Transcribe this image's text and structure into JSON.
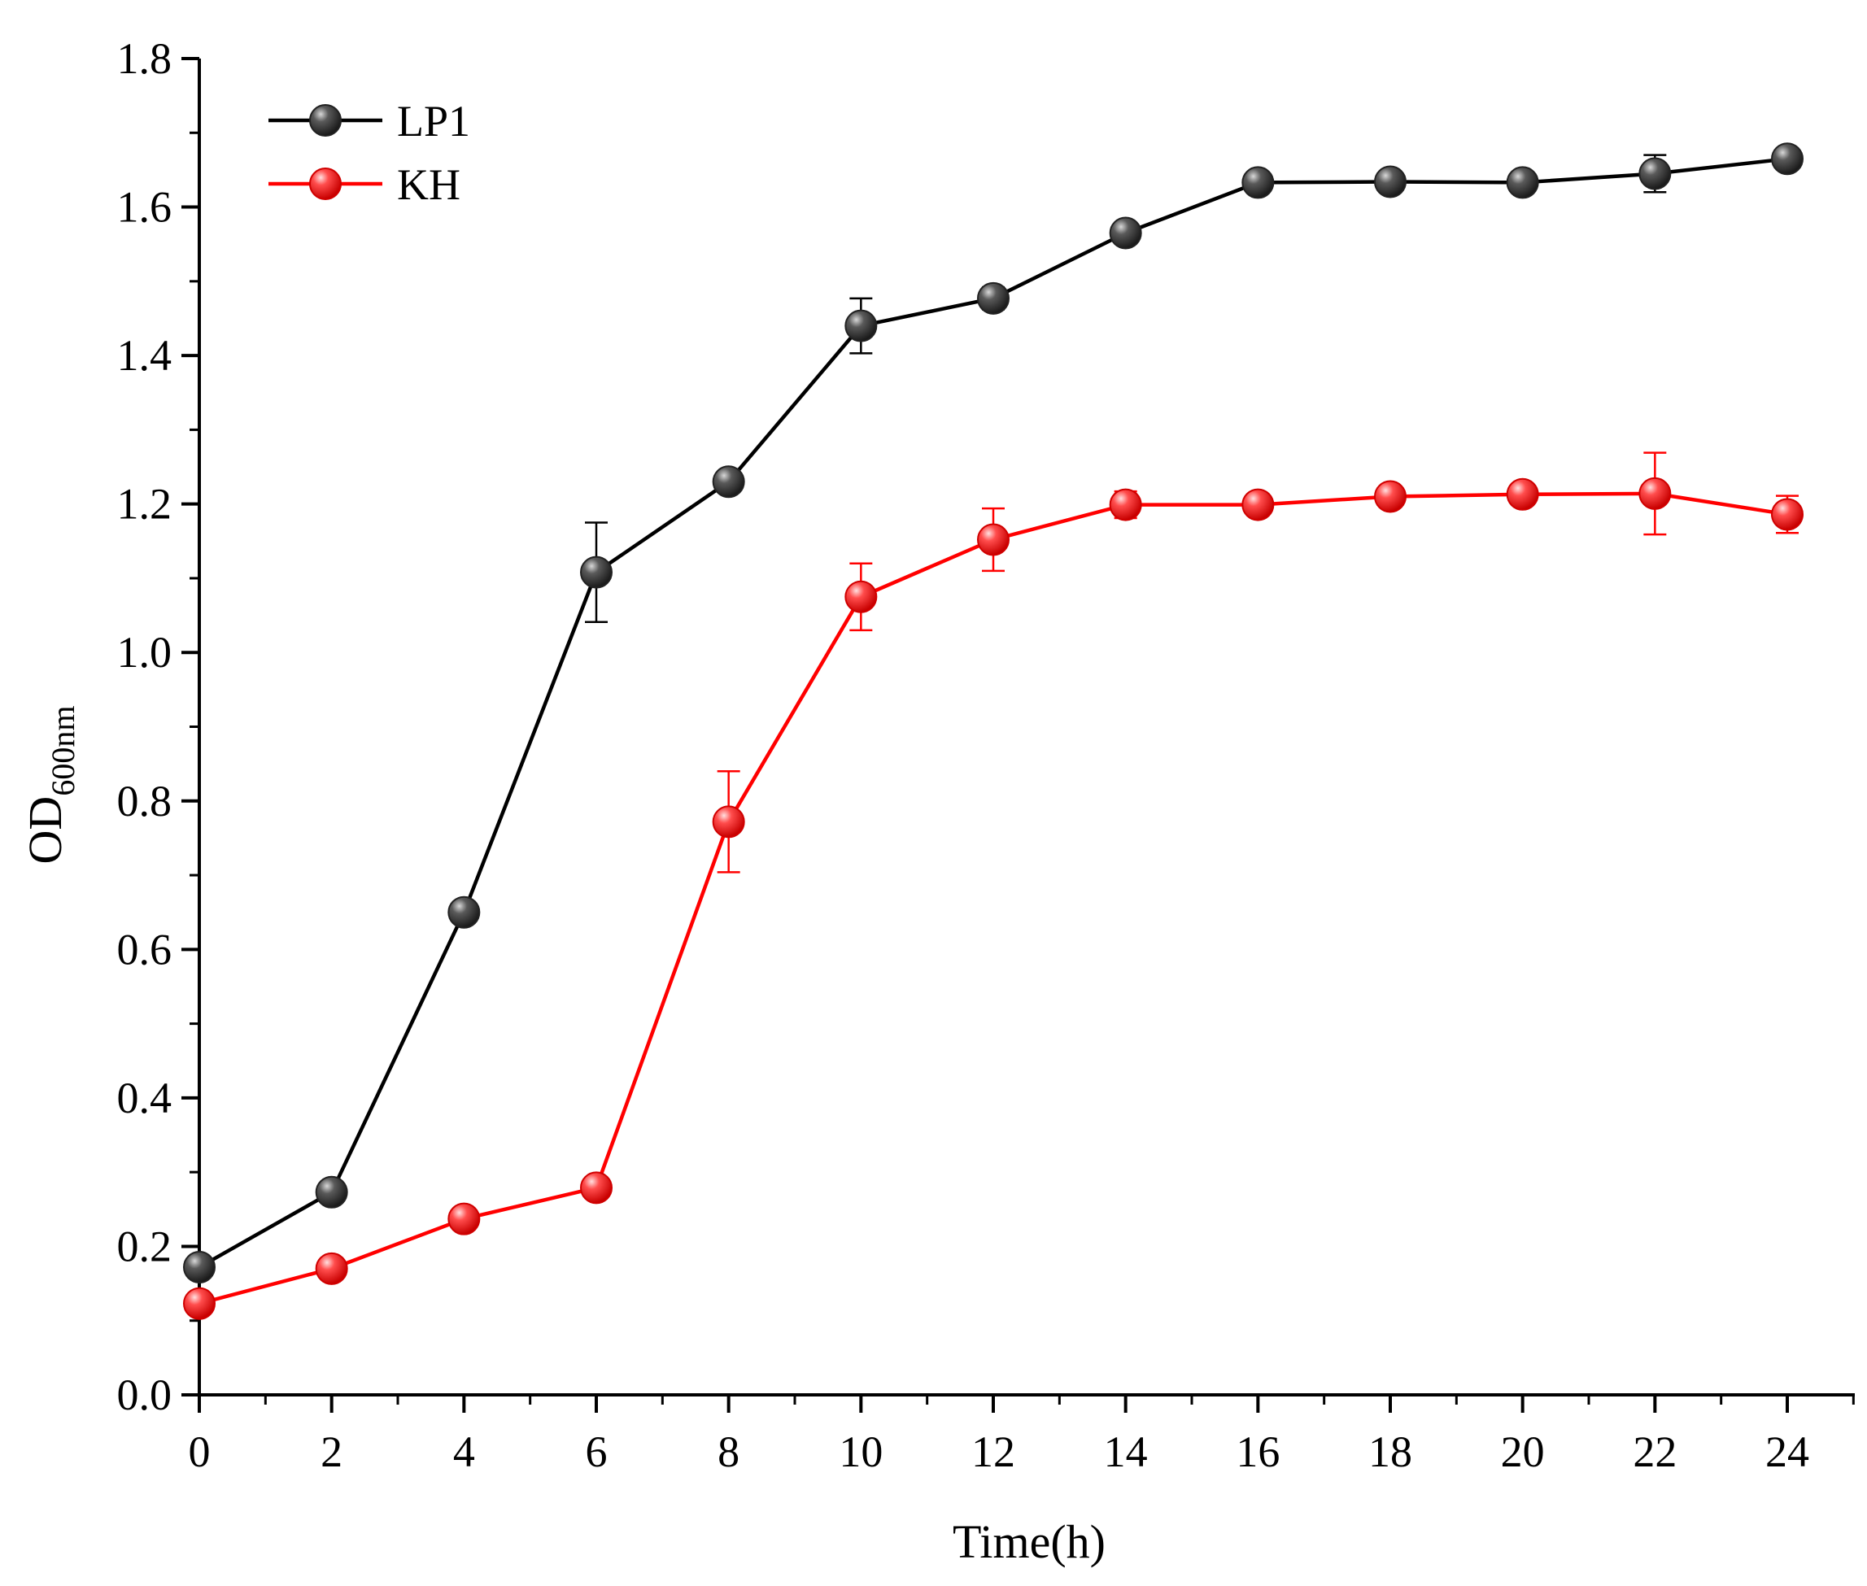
{
  "chart_data": {
    "type": "line",
    "title": "",
    "xlabel": "Time(h)",
    "ylabel_main": "OD",
    "ylabel_sub": "600nm",
    "xlim": [
      0,
      25
    ],
    "ylim": [
      0,
      1.8
    ],
    "x_ticks": [
      0,
      2,
      4,
      6,
      8,
      10,
      12,
      14,
      16,
      18,
      20,
      22,
      24
    ],
    "x_tick_labels": [
      "0",
      "2",
      "4",
      "6",
      "8",
      "10",
      "12",
      "14",
      "16",
      "18",
      "20",
      "22",
      "24"
    ],
    "y_ticks": [
      0,
      0.2,
      0.4,
      0.6,
      0.8,
      1.0,
      1.2,
      1.4,
      1.6,
      1.8
    ],
    "y_tick_labels": [
      "0.0",
      "0.2",
      "0.4",
      "0.6",
      "0.8",
      "1.0",
      "1.2",
      "1.4",
      "1.6",
      "1.8"
    ],
    "legend_position": "top-left",
    "x": [
      0,
      2,
      4,
      6,
      8,
      10,
      12,
      14,
      16,
      18,
      20,
      22,
      24
    ],
    "series": [
      {
        "name": "LP1",
        "color": "#000000",
        "marker_color": "#3a3a3a",
        "values": [
          0.172,
          0.273,
          0.65,
          1.108,
          1.23,
          1.44,
          1.477,
          1.565,
          1.633,
          1.634,
          1.633,
          1.645,
          1.665
        ],
        "errors": [
          0.005,
          0.008,
          0.008,
          0.067,
          0.01,
          0.037,
          0.015,
          0.008,
          0.007,
          0.01,
          0.008,
          0.025,
          0.008
        ]
      },
      {
        "name": "KH",
        "color": "#ff0000",
        "marker_color": "#ff3b3b",
        "values": [
          0.123,
          0.17,
          0.237,
          0.279,
          0.772,
          1.075,
          1.152,
          1.199,
          1.199,
          1.21,
          1.213,
          1.214,
          1.186
        ],
        "errors": [
          0.005,
          0.006,
          0.006,
          0.008,
          0.068,
          0.045,
          0.042,
          0.018,
          0.008,
          0.008,
          0.008,
          0.055,
          0.025
        ]
      }
    ]
  }
}
